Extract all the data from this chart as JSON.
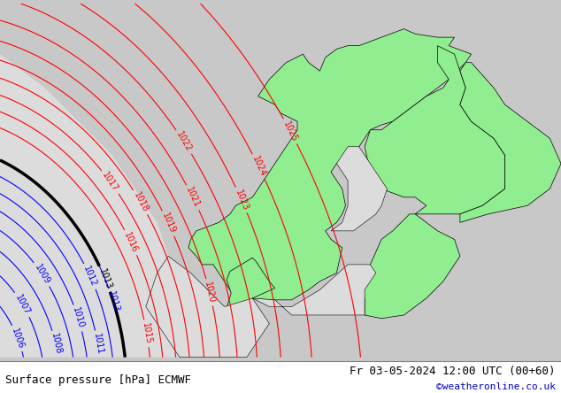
{
  "title_left": "Surface pressure [hPa] ECMWF",
  "title_right": "Fr 03-05-2024 12:00 UTC (00+60)",
  "copyright": "©weatheronline.co.uk",
  "bg_color": "#dcdcdc",
  "green_color": "#90ee90",
  "contour_red": "#ff0000",
  "contour_blue": "#0000ff",
  "contour_black": "#000000",
  "font_size_label": 7,
  "font_size_title": 9,
  "font_size_copyright": 8,
  "lon_min": -12,
  "lon_max": 38,
  "lat_min": 52,
  "lat_max": 73
}
